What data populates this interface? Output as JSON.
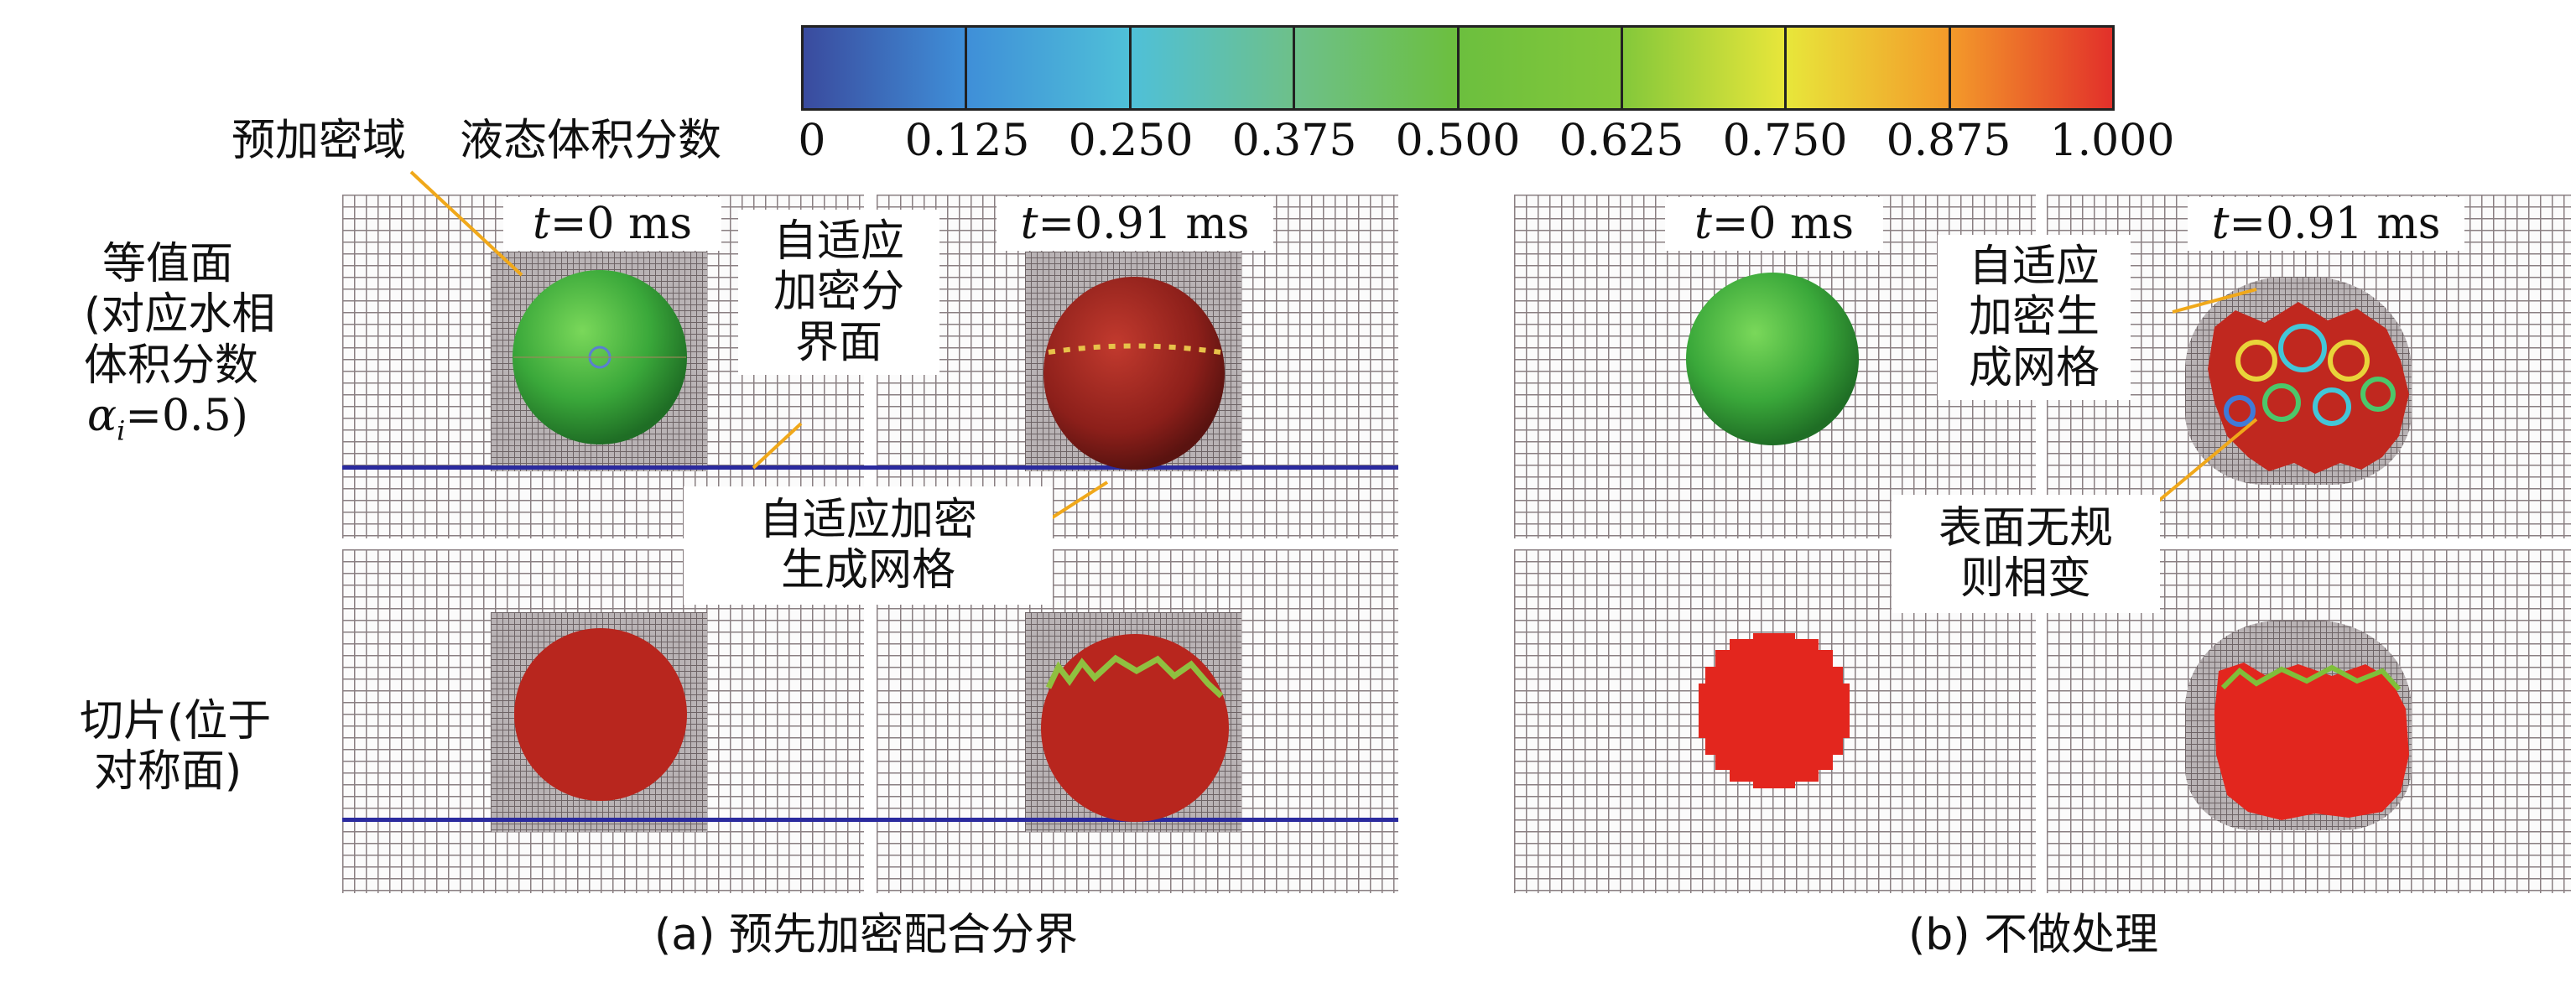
{
  "colorbar": {
    "label": "液态体积分数",
    "ticks": [
      "0",
      "0.125",
      "0.250",
      "0.375",
      "0.500",
      "0.625",
      "0.750",
      "0.875",
      "1.000"
    ],
    "colors": [
      "#3a4b9e",
      "#3f8fd8",
      "#4fc0d8",
      "#6dc08a",
      "#6cbf3e",
      "#84c83a",
      "#e8e63a",
      "#f39a2a",
      "#e2302a"
    ]
  },
  "labels": {
    "predense": "预加密域",
    "row1": [
      "等值面",
      "(对应水相",
      "体积分数"
    ],
    "row1_alpha": "α",
    "row1_sub": "i",
    "row1_eq": "=0.5)",
    "row2": [
      "切片(位于",
      "对称面)"
    ],
    "time0_t": "t",
    "time0": "=0 ms",
    "time1_t": "t",
    "time1": "=0.91 ms",
    "adaptive_boundary": [
      "自适应",
      "加密分",
      "界面"
    ],
    "adaptive_mesh_a": [
      "自适应加密",
      "生成网格"
    ],
    "adaptive_mesh_b": [
      "自适应",
      "加密生",
      "成网格"
    ],
    "irregular": [
      "表面无规",
      "则相变"
    ]
  },
  "captions": {
    "a": "(a) 预先加密配合分界",
    "b": "(b) 不做处理"
  }
}
